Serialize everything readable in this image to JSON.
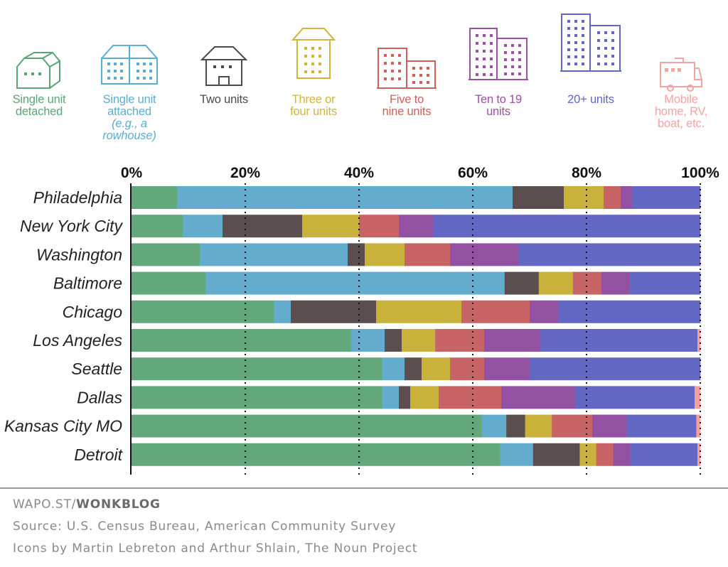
{
  "legend": [
    {
      "icon": "detached-house-icon",
      "lines": [
        "Single unit",
        "detached"
      ],
      "sub": [],
      "color": "#5aa675"
    },
    {
      "icon": "rowhouse-icon",
      "lines": [
        "Single unit",
        "attached"
      ],
      "sub": [
        "(e.g., a",
        "rowhouse)"
      ],
      "color": "#5aaed3"
    },
    {
      "icon": "duplex-house-icon",
      "lines": [
        "Two units"
      ],
      "sub": [],
      "color": "#4a4a4a"
    },
    {
      "icon": "small-apartment-icon",
      "lines": [
        "Three or",
        "four units"
      ],
      "sub": [],
      "color": "#d2b43a"
    },
    {
      "icon": "mid-apartment-icon",
      "lines": [
        "Five to",
        "nine units"
      ],
      "sub": [],
      "color": "#d0605c"
    },
    {
      "icon": "tall-apartment-icon",
      "lines": [
        "Ten to 19",
        "units"
      ],
      "sub": [],
      "color": "#9d4ea7"
    },
    {
      "icon": "tower-apartment-icon",
      "lines": [
        "20+ units"
      ],
      "sub": [],
      "color": "#6366c9"
    },
    {
      "icon": "rv-icon",
      "lines": [
        "Mobile",
        "home, RV,",
        "boat, etc."
      ],
      "sub": [],
      "color": "#f6a3a3"
    }
  ],
  "chart_data": {
    "type": "bar",
    "orientation": "horizontal",
    "stacked": true,
    "xlim": [
      0,
      100
    ],
    "ticks": [
      "0%",
      "20%",
      "40%",
      "60%",
      "80%",
      "100%"
    ],
    "categories": [
      "Philadelphia",
      "New York City",
      "Washington",
      "Baltimore",
      "Chicago",
      "Los Angeles",
      "Seattle",
      "Dallas",
      "Kansas City MO",
      "Detroit"
    ],
    "series": [
      {
        "name": "Single unit detached",
        "color": "#63a87b",
        "values": [
          8,
          9,
          12,
          13,
          25,
          38.6,
          44,
          44,
          61.6,
          64.8
        ]
      },
      {
        "name": "Single unit attached (e.g., a rowhouse)",
        "color": "#64acce",
        "values": [
          59,
          7,
          26,
          52.6,
          3,
          5.9,
          4,
          3,
          4.3,
          5.8
        ]
      },
      {
        "name": "Two units",
        "color": "#5b4e4e",
        "values": [
          9,
          14,
          3,
          6,
          15,
          3,
          3,
          2,
          3.3,
          8.2
        ]
      },
      {
        "name": "Three or four units",
        "color": "#c9b23c",
        "values": [
          7,
          10,
          7,
          6,
          15,
          5.9,
          5,
          5,
          4.7,
          2.9
        ]
      },
      {
        "name": "Five to nine units",
        "color": "#c96466",
        "values": [
          3,
          7,
          8,
          5,
          12,
          8.6,
          6,
          11,
          7.1,
          3
        ]
      },
      {
        "name": "Ten to 19 units",
        "color": "#9352a1",
        "values": [
          2,
          6,
          12,
          5,
          5,
          9.9,
          8,
          13,
          6,
          3
        ]
      },
      {
        "name": "20+ units",
        "color": "#6268c4",
        "values": [
          12,
          47,
          32,
          12.4,
          25,
          27.6,
          30,
          21,
          12.3,
          11.8
        ]
      },
      {
        "name": "Mobile home, RV, boat, etc.",
        "color": "#f5a0a0",
        "values": [
          0,
          0,
          0,
          0,
          0,
          0.5,
          0,
          1,
          0.7,
          0.5
        ]
      }
    ]
  },
  "footer": {
    "site_prefix": "WAPO.ST/",
    "site_name": "WONKBLOG",
    "source": "Source: U.S. Census Bureau, American Community Survey",
    "credits": "Icons by Martin Lebreton and Arthur Shlain, The Noun Project"
  }
}
